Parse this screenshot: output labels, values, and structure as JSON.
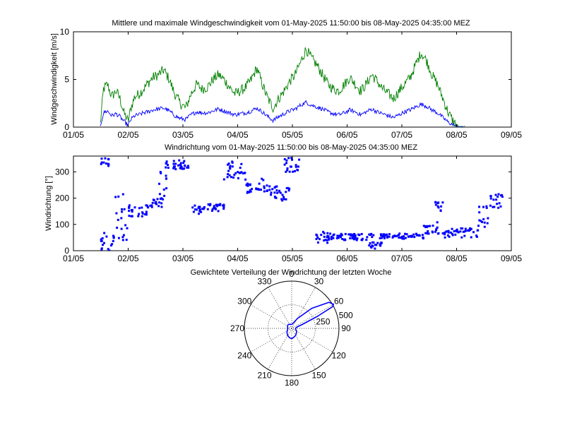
{
  "chart_data": [
    {
      "type": "line",
      "title": "Mittlere und maximale Windgeschwindigkeit vom 01-May-2025 11:50:00 bis 08-May-2025 04:35:00 MEZ",
      "xlabel": "",
      "ylabel": "Windgeschwindigkeit  [m/s]",
      "x_ticks": [
        "01/05",
        "02/05",
        "03/05",
        "04/05",
        "05/05",
        "06/05",
        "07/05",
        "08/05",
        "09/05"
      ],
      "y_ticks": [
        "0",
        "5",
        "10"
      ],
      "xlim": [
        "2025-05-01",
        "2025-05-09"
      ],
      "ylim": [
        0,
        10
      ],
      "grid": false,
      "series": [
        {
          "color": "#008000",
          "x_days": [
            0.49,
            0.55,
            0.62,
            0.7,
            0.78,
            0.85,
            0.92,
            1.0,
            1.05,
            1.12,
            1.2,
            1.28,
            1.36,
            1.45,
            1.55,
            1.65,
            1.75,
            1.85,
            1.95,
            2.05,
            2.15,
            2.25,
            2.35,
            2.45,
            2.55,
            2.65,
            2.75,
            2.85,
            2.95,
            3.05,
            3.15,
            3.25,
            3.35,
            3.45,
            3.55,
            3.65,
            3.75,
            3.85,
            3.95,
            4.05,
            4.15,
            4.25,
            4.35,
            4.45,
            4.55,
            4.65,
            4.75,
            4.85,
            4.95,
            5.05,
            5.15,
            5.25,
            5.35,
            5.45,
            5.55,
            5.65,
            5.75,
            5.85,
            5.95,
            6.05,
            6.15,
            6.25,
            6.35,
            6.45,
            6.55,
            6.65,
            6.75,
            6.85,
            6.95,
            7.05,
            7.15
          ],
          "values": [
            0.3,
            4.0,
            4.5,
            3.2,
            3.8,
            3.0,
            1.5,
            0.6,
            2.0,
            3.2,
            3.5,
            4.0,
            4.6,
            5.2,
            5.5,
            6.0,
            5.0,
            3.5,
            2.5,
            2.0,
            3.5,
            4.5,
            4.0,
            4.2,
            5.0,
            5.5,
            5.0,
            4.2,
            3.5,
            3.8,
            4.2,
            5.0,
            6.2,
            4.5,
            3.0,
            2.0,
            3.0,
            3.8,
            4.8,
            5.5,
            6.8,
            8.2,
            7.2,
            6.5,
            5.5,
            4.5,
            4.0,
            3.8,
            4.5,
            5.2,
            4.5,
            3.8,
            4.5,
            5.5,
            4.8,
            4.0,
            3.5,
            3.0,
            3.8,
            4.5,
            5.2,
            6.5,
            7.8,
            7.0,
            5.5,
            4.5,
            3.0,
            1.5,
            0.5,
            0.0,
            0.0
          ]
        },
        {
          "color": "#0000ff",
          "x_days": [
            0.49,
            0.55,
            0.62,
            0.7,
            0.78,
            0.85,
            0.92,
            1.0,
            1.05,
            1.12,
            1.2,
            1.28,
            1.36,
            1.45,
            1.55,
            1.65,
            1.75,
            1.85,
            1.95,
            2.05,
            2.15,
            2.25,
            2.35,
            2.45,
            2.55,
            2.65,
            2.75,
            2.85,
            2.95,
            3.05,
            3.15,
            3.25,
            3.35,
            3.45,
            3.55,
            3.65,
            3.75,
            3.85,
            3.95,
            4.05,
            4.15,
            4.25,
            4.35,
            4.45,
            4.55,
            4.65,
            4.75,
            4.85,
            4.95,
            5.05,
            5.15,
            5.25,
            5.35,
            5.45,
            5.55,
            5.65,
            5.75,
            5.85,
            5.95,
            6.05,
            6.15,
            6.25,
            6.35,
            6.45,
            6.55,
            6.65,
            6.75,
            6.85,
            6.95,
            7.05,
            7.15
          ],
          "values": [
            0.1,
            1.5,
            1.7,
            1.2,
            1.4,
            1.1,
            0.6,
            0.2,
            0.8,
            1.2,
            1.3,
            1.5,
            1.6,
            1.8,
            1.9,
            2.0,
            1.7,
            1.2,
            0.9,
            0.8,
            1.3,
            1.6,
            1.5,
            1.5,
            1.7,
            1.9,
            1.7,
            1.5,
            1.3,
            1.4,
            1.5,
            1.7,
            2.0,
            1.6,
            1.1,
            0.7,
            1.1,
            1.4,
            1.7,
            1.9,
            2.3,
            2.6,
            2.3,
            2.1,
            1.9,
            1.6,
            1.4,
            1.3,
            1.5,
            1.8,
            1.6,
            1.3,
            1.6,
            1.9,
            1.6,
            1.4,
            1.2,
            1.0,
            1.3,
            1.6,
            1.8,
            2.1,
            2.4,
            2.2,
            1.8,
            1.5,
            1.0,
            0.5,
            0.2,
            0.0,
            0.0
          ]
        }
      ]
    },
    {
      "type": "scatter",
      "title": "Windrichtung vom 01-May-2025 11:50:00 bis 08-May-2025 04:35:00 MEZ",
      "xlabel": "",
      "ylabel": "Windrichtung  [°]",
      "x_ticks": [
        "01/05",
        "02/05",
        "03/05",
        "04/05",
        "05/05",
        "06/05",
        "07/05",
        "08/05",
        "09/05"
      ],
      "y_ticks": [
        "0",
        "100",
        "200",
        "300"
      ],
      "xlim": [
        "2025-05-01",
        "2025-05-09"
      ],
      "ylim": [
        0,
        360
      ],
      "grid": false,
      "series": [
        {
          "color": "#0000ff",
          "marker": "point",
          "clusters": [
            {
              "x_days": [
                0.49,
                0.65
              ],
              "y_range": [
                320,
                355
              ]
            },
            {
              "x_days": [
                0.5,
                0.75
              ],
              "y_range": [
                0,
                70
              ]
            },
            {
              "x_days": [
                0.75,
                1.0
              ],
              "y_range": [
                40,
                220
              ]
            },
            {
              "x_days": [
                1.0,
                1.4
              ],
              "y_range": [
                130,
                175
              ]
            },
            {
              "x_days": [
                1.4,
                1.65
              ],
              "y_range": [
                165,
                200
              ]
            },
            {
              "x_days": [
                1.55,
                1.7
              ],
              "y_range": [
                200,
                300
              ]
            },
            {
              "x_days": [
                1.65,
                2.1
              ],
              "y_range": [
                310,
                345
              ]
            },
            {
              "x_days": [
                2.15,
                2.35
              ],
              "y_range": [
                140,
                175
              ]
            },
            {
              "x_days": [
                2.35,
                2.75
              ],
              "y_range": [
                150,
                180
              ]
            },
            {
              "x_days": [
                2.75,
                3.15
              ],
              "y_range": [
                270,
                345
              ]
            },
            {
              "x_days": [
                3.15,
                3.4
              ],
              "y_range": [
                220,
                260
              ]
            },
            {
              "x_days": [
                3.4,
                3.55
              ],
              "y_range": [
                225,
                275
              ]
            },
            {
              "x_days": [
                3.55,
                3.75
              ],
              "y_range": [
                200,
                245
              ]
            },
            {
              "x_days": [
                3.75,
                3.95
              ],
              "y_range": [
                190,
                240
              ]
            },
            {
              "x_days": [
                3.85,
                4.15
              ],
              "y_range": [
                300,
                355
              ]
            },
            {
              "x_days": [
                4.4,
                4.65
              ],
              "y_range": [
                25,
                75
              ]
            },
            {
              "x_days": [
                4.65,
                5.5
              ],
              "y_range": [
                40,
                65
              ]
            },
            {
              "x_days": [
                5.4,
                5.65
              ],
              "y_range": [
                5,
                35
              ]
            },
            {
              "x_days": [
                5.6,
                6.4
              ],
              "y_range": [
                45,
                65
              ]
            },
            {
              "x_days": [
                6.4,
                6.7
              ],
              "y_range": [
                60,
                115
              ]
            },
            {
              "x_days": [
                6.6,
                6.75
              ],
              "y_range": [
                150,
                190
              ]
            },
            {
              "x_days": [
                6.75,
                7.4
              ],
              "y_range": [
                50,
                85
              ]
            },
            {
              "x_days": [
                7.4,
                7.6
              ],
              "y_range": [
                90,
                170
              ]
            },
            {
              "x_days": [
                7.6,
                7.85
              ],
              "y_range": [
                160,
                215
              ]
            }
          ]
        }
      ]
    },
    {
      "type": "polar",
      "title": "Gewichtete Verteilung der Windrichtung der letzten Woche",
      "angle_labels": [
        "0",
        "30",
        "60",
        "90",
        "120",
        "150",
        "180",
        "210",
        "240",
        "270",
        "300",
        "330"
      ],
      "r_labels": [
        "250",
        "500"
      ],
      "rmax": 500,
      "angle_convention": "compass, 0 at top, clockwise",
      "series": [
        {
          "color": "#0000ff",
          "angles_deg": [
            0,
            15,
            30,
            45,
            55,
            60,
            62,
            65,
            70,
            75,
            90,
            105,
            120,
            135,
            150,
            165,
            180,
            195,
            210,
            225,
            240,
            255,
            270,
            285,
            300,
            315,
            330,
            345,
            360
          ],
          "r": [
            40,
            55,
            120,
            300,
            480,
            510,
            490,
            300,
            110,
            60,
            40,
            45,
            60,
            70,
            85,
            95,
            110,
            100,
            85,
            70,
            55,
            45,
            40,
            45,
            50,
            55,
            50,
            45,
            40
          ]
        }
      ]
    }
  ]
}
